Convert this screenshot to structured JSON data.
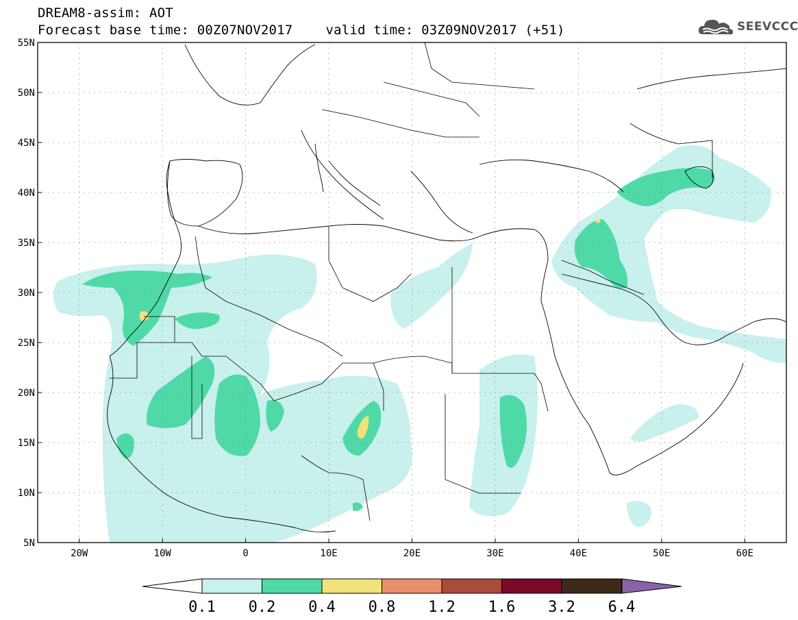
{
  "header": {
    "title_line1": "DREAM8-assim: AOT",
    "base_time": "Forecast base time: 00Z07NOV2017",
    "valid_time": "valid time: 03Z09NOV2017 (+51)"
  },
  "logo": {
    "text": "SEEVCCC",
    "icon": "cloud-icon"
  },
  "map": {
    "lat_labels": [
      "55N",
      "50N",
      "45N",
      "40N",
      "35N",
      "30N",
      "25N",
      "20N",
      "15N",
      "10N",
      "5N"
    ],
    "lon_labels": [
      "20W",
      "10W",
      "0",
      "10E",
      "20E",
      "30E",
      "40E",
      "50E",
      "60E"
    ],
    "lat_range": [
      5,
      55
    ],
    "lon_range": [
      -25,
      65
    ],
    "grid": "dotted"
  },
  "colorbar": {
    "labels": [
      "0.1",
      "0.2",
      "0.4",
      "0.8",
      "1.2",
      "1.6",
      "3.2",
      "6.4"
    ],
    "colors": [
      "#ffffff",
      "#c8f0ec",
      "#4fd9a6",
      "#f2e27a",
      "#e8906a",
      "#a84c3c",
      "#7a0a28",
      "#3e2a18",
      "#8a64a8"
    ],
    "left_extend_color": "#ffffff",
    "right_extend_color": "#8a64a8"
  },
  "aot_colors": {
    "c01": "#c8f0ec",
    "c02": "#4fd9a6",
    "c04": "#f2e27a"
  }
}
